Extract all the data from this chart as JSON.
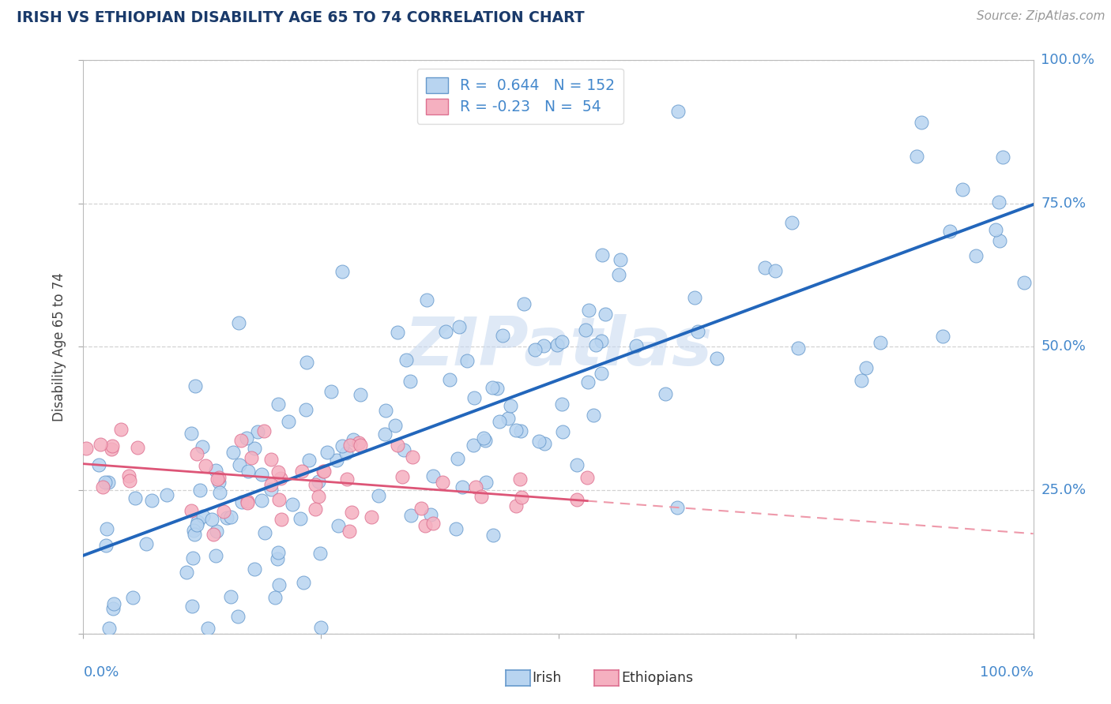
{
  "title": "IRISH VS ETHIOPIAN DISABILITY AGE 65 TO 74 CORRELATION CHART",
  "source": "Source: ZipAtlas.com",
  "ylabel": "Disability Age 65 to 74",
  "irish_R": 0.644,
  "irish_N": 152,
  "ethiopian_R": -0.23,
  "ethiopian_N": 54,
  "irish_fill_color": "#b8d4f0",
  "irish_edge_color": "#6699cc",
  "irish_line_color": "#2266bb",
  "ethiopian_fill_color": "#f5b0c0",
  "ethiopian_edge_color": "#dd7090",
  "ethiopian_solid_line_color": "#dd5577",
  "ethiopian_dash_line_color": "#ee99aa",
  "background_color": "#ffffff",
  "grid_color": "#cccccc",
  "title_color": "#1a3a6a",
  "axis_tick_color": "#4488cc",
  "source_color": "#999999",
  "watermark_color": "#c5d8f0",
  "xlim": [
    0.0,
    1.0
  ],
  "ylim": [
    0.0,
    1.0
  ],
  "ytick_positions": [
    0.25,
    0.5,
    0.75,
    1.0
  ],
  "ytick_labels": [
    "25.0%",
    "50.0%",
    "75.0%",
    "100.0%"
  ],
  "xtick_left_label": "0.0%",
  "xtick_right_label": "100.0%",
  "legend_label_color": "#4488cc",
  "legend_RN_color": "#4488cc"
}
